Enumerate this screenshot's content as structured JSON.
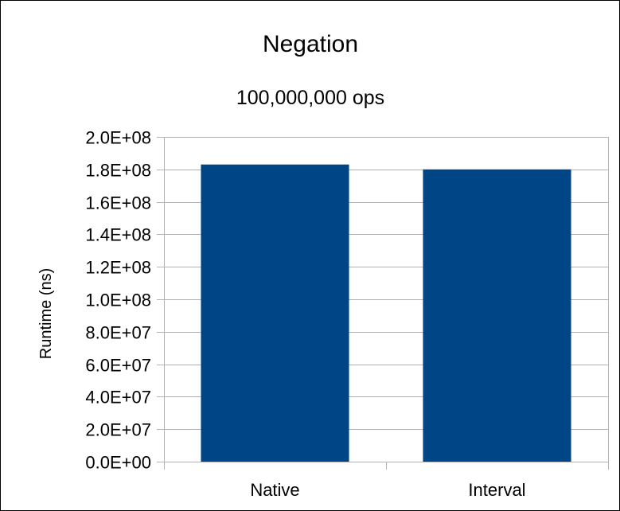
{
  "chart_data": {
    "type": "bar",
    "title": "Negation",
    "subtitle": "100,000,000 ops",
    "xlabel": "",
    "ylabel": "Runtime (ns)",
    "categories": [
      "Native",
      "Interval"
    ],
    "values": [
      183000000,
      180000000
    ],
    "ylim": [
      0,
      200000000
    ],
    "y_ticks": [
      0,
      20000000,
      40000000,
      60000000,
      80000000,
      100000000,
      120000000,
      140000000,
      160000000,
      180000000,
      200000000
    ],
    "y_tick_labels": [
      "0.0E+00",
      "2.0E+07",
      "4.0E+07",
      "6.0E+07",
      "8.0E+07",
      "1.0E+08",
      "1.2E+08",
      "1.4E+08",
      "1.6E+08",
      "1.8E+08",
      "2.0E+08"
    ],
    "bar_color": "#004586",
    "grid": true,
    "legend": "none"
  }
}
